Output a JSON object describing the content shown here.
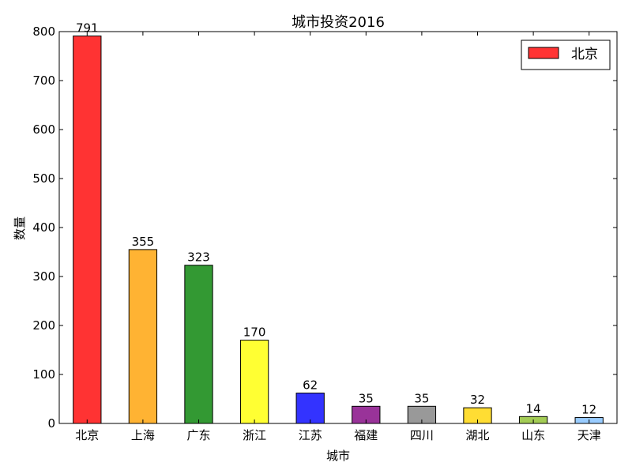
{
  "chart_data": {
    "type": "bar",
    "title": "城市投资2016",
    "xlabel": "城市",
    "ylabel": "数量",
    "categories": [
      "北京",
      "上海",
      "广东",
      "浙江",
      "江苏",
      "福建",
      "四川",
      "湖北",
      "山东",
      "天津"
    ],
    "values": [
      791,
      355,
      323,
      170,
      62,
      35,
      35,
      32,
      14,
      12
    ],
    "data_labels": [
      "791",
      "355",
      "323",
      "170",
      "62",
      "35",
      "35",
      "32",
      "14",
      "12"
    ],
    "colors": [
      "#ff3333",
      "#ffb333",
      "#339933",
      "#ffff33",
      "#3333ff",
      "#993399",
      "#999999",
      "#ffdd33",
      "#a3cc55",
      "#99ccff"
    ],
    "ylim": [
      0,
      800
    ],
    "yticks": [
      0,
      100,
      200,
      300,
      400,
      500,
      600,
      700,
      800
    ],
    "ytick_labels": [
      "0",
      "100",
      "200",
      "300",
      "400",
      "500",
      "600",
      "700",
      "800"
    ],
    "grid": false,
    "legend": {
      "position": "top-right",
      "entries": [
        {
          "label": "北京",
          "color": "#ff3333"
        }
      ]
    }
  }
}
